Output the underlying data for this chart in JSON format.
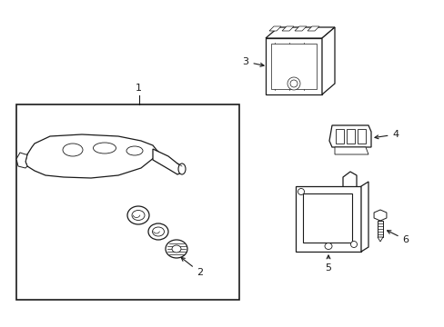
{
  "background_color": "#ffffff",
  "line_color": "#1a1a1a",
  "fig_width": 4.89,
  "fig_height": 3.6,
  "dpi": 100,
  "labels": [
    "1",
    "2",
    "3",
    "4",
    "5",
    "6"
  ],
  "font_size": 8
}
